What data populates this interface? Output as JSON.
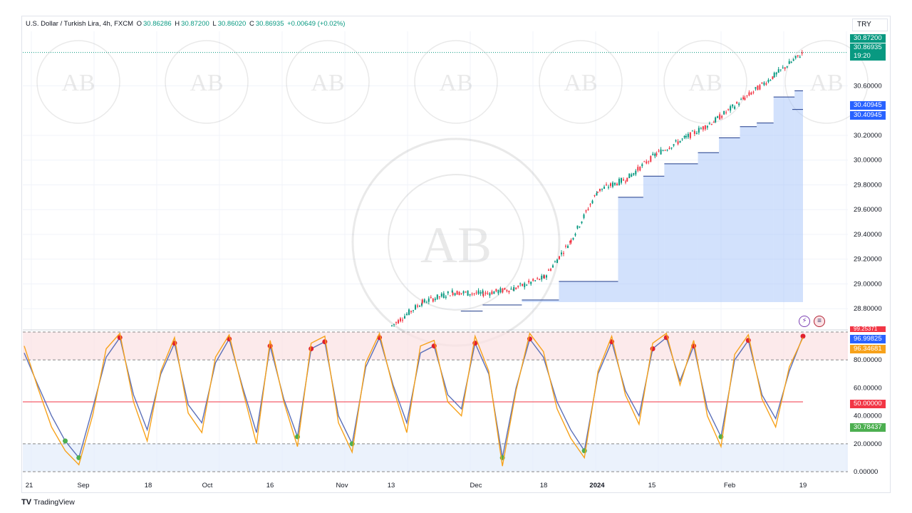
{
  "legend": {
    "symbol": "U.S. Dollar / Turkish Lira, 4h, FXCM",
    "open_label": "O",
    "open": "30.86286",
    "high_label": "H",
    "high": "30.87200",
    "low_label": "L",
    "low": "30.86020",
    "close_label": "C",
    "close": "30.86935",
    "change": "+0.00649 (+0.02%)"
  },
  "currency_button": "TRY",
  "branding": "TradingView",
  "colors": {
    "up": "#089981",
    "down": "#f23645",
    "fill": "#a6c4fa",
    "rsi": "#5b6fb8",
    "stoch": "#f7a21b"
  },
  "price_tags": {
    "high": "30.87200",
    "last": "30.86935",
    "countdown": "19:20",
    "stop1": "30.40945",
    "stop2": "30.40945"
  },
  "osc_tags": {
    "top_hidden": "99.25371",
    "rsi": "96.99825",
    "stoch": "96.34681",
    "mid": "50.00000",
    "low": "30.78437"
  },
  "chart_data": [
    {
      "type": "line",
      "pane": "price",
      "title": "U.S. Dollar / Turkish Lira, 4h, FXCM",
      "x_ticks": [
        "21",
        "Sep",
        "18",
        "Oct",
        "16",
        "Nov",
        "13",
        "Dec",
        "18",
        "2024",
        "15",
        "Feb",
        "19"
      ],
      "y_ticks": [
        "30.60000",
        "30.20000",
        "30.00000",
        "29.80000",
        "29.60000",
        "29.40000",
        "29.20000",
        "29.00000",
        "28.80000"
      ],
      "y_tick_values": [
        30.6,
        30.2,
        30.0,
        29.8,
        29.6,
        29.4,
        29.2,
        29.0,
        28.8
      ],
      "ylim": [
        28.64,
        31.04
      ],
      "close_points": [
        [
          "2023-11-13",
          28.66
        ],
        [
          "2023-11-20",
          28.85
        ],
        [
          "2023-11-27",
          28.93
        ],
        [
          "2023-12-04",
          28.92
        ],
        [
          "2023-12-11",
          28.96
        ],
        [
          "2023-12-18",
          29.05
        ],
        [
          "2023-12-25",
          29.35
        ],
        [
          "2024-01-01",
          29.75
        ],
        [
          "2024-01-08",
          29.85
        ],
        [
          "2024-01-15",
          30.05
        ],
        [
          "2024-01-22",
          30.18
        ],
        [
          "2024-01-29",
          30.32
        ],
        [
          "2024-02-05",
          30.5
        ],
        [
          "2024-02-12",
          30.68
        ],
        [
          "2024-02-19",
          30.869
        ]
      ],
      "trailing_stop_steps": [
        [
          "2023-11-29",
          28.78
        ],
        [
          "2023-12-04",
          28.83
        ],
        [
          "2023-12-13",
          28.87
        ],
        [
          "2023-12-22",
          29.02
        ],
        [
          "2024-01-06",
          29.7
        ],
        [
          "2024-01-12",
          29.87
        ],
        [
          "2024-01-17",
          29.97
        ],
        [
          "2024-01-25",
          30.06
        ],
        [
          "2024-01-30",
          30.18
        ],
        [
          "2024-02-04",
          30.27
        ],
        [
          "2024-02-08",
          30.3
        ],
        [
          "2024-02-12",
          30.51
        ],
        [
          "2024-02-17",
          30.56
        ],
        [
          "2024-02-19",
          30.409
        ]
      ],
      "last_price": 30.86935
    },
    {
      "type": "line",
      "pane": "oscillator",
      "y_ticks": [
        "80.00000",
        "60.00000",
        "40.00000",
        "20.00000",
        "0.00000"
      ],
      "y_tick_values": [
        80,
        60,
        40,
        20,
        0
      ],
      "ylim": [
        -1,
        101
      ],
      "levels": [
        0,
        20,
        50,
        80,
        100
      ],
      "series": [
        {
          "values": [
            85,
            62,
            40,
            22,
            10,
            45,
            82,
            96,
            55,
            30,
            70,
            92,
            48,
            35,
            78,
            95,
            60,
            28,
            90,
            52,
            25,
            88,
            93,
            40,
            20,
            75,
            96,
            62,
            35,
            85,
            90,
            55,
            45,
            92,
            70,
            10,
            60,
            95,
            82,
            50,
            30,
            15,
            70,
            93,
            58,
            40,
            88,
            96,
            65,
            90,
            45,
            25,
            80,
            94,
            55,
            38,
            72,
            97
          ]
        },
        {
          "values": [
            90,
            60,
            32,
            15,
            5,
            40,
            88,
            99,
            50,
            22,
            72,
            96,
            42,
            28,
            82,
            98,
            58,
            20,
            94,
            50,
            18,
            92,
            97,
            35,
            14,
            78,
            99,
            60,
            28,
            90,
            94,
            50,
            40,
            97,
            72,
            4,
            58,
            99,
            86,
            45,
            24,
            10,
            72,
            97,
            55,
            34,
            92,
            99,
            62,
            94,
            40,
            18,
            84,
            98,
            52,
            32,
            75,
            96
          ]
        }
      ]
    }
  ]
}
